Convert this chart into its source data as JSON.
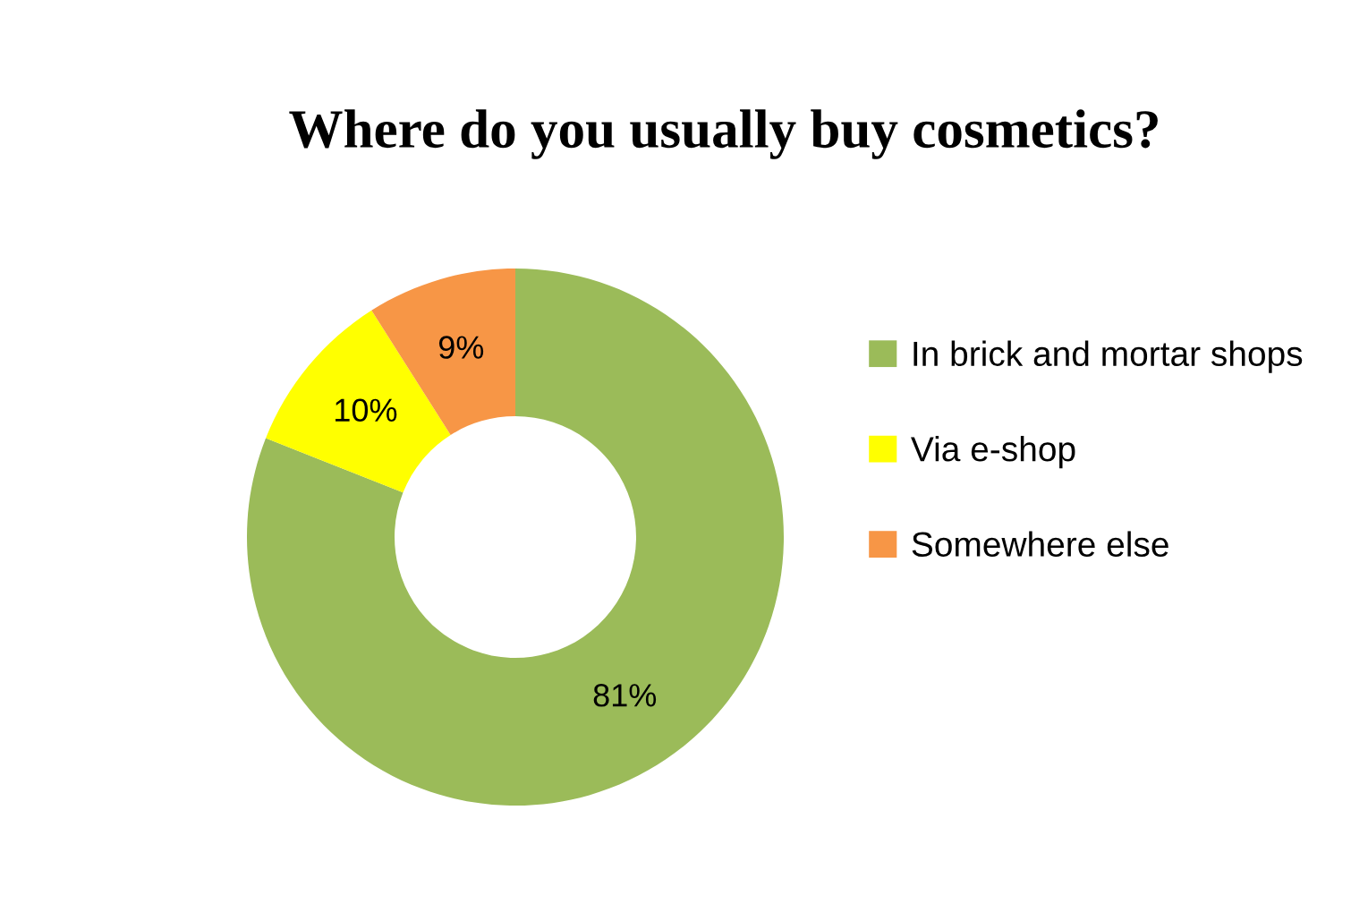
{
  "chart_data": {
    "type": "donut",
    "title": "Where do you usually buy cosmetics?",
    "categories": [
      "In brick and mortar shops",
      "Via e-shop",
      "Somewhere else"
    ],
    "values": [
      81,
      10,
      9
    ],
    "colors": [
      "#9bbb59",
      "#ffff00",
      "#f79646"
    ],
    "value_labels": [
      "81%",
      "10%",
      "9%"
    ],
    "legend": "right"
  }
}
